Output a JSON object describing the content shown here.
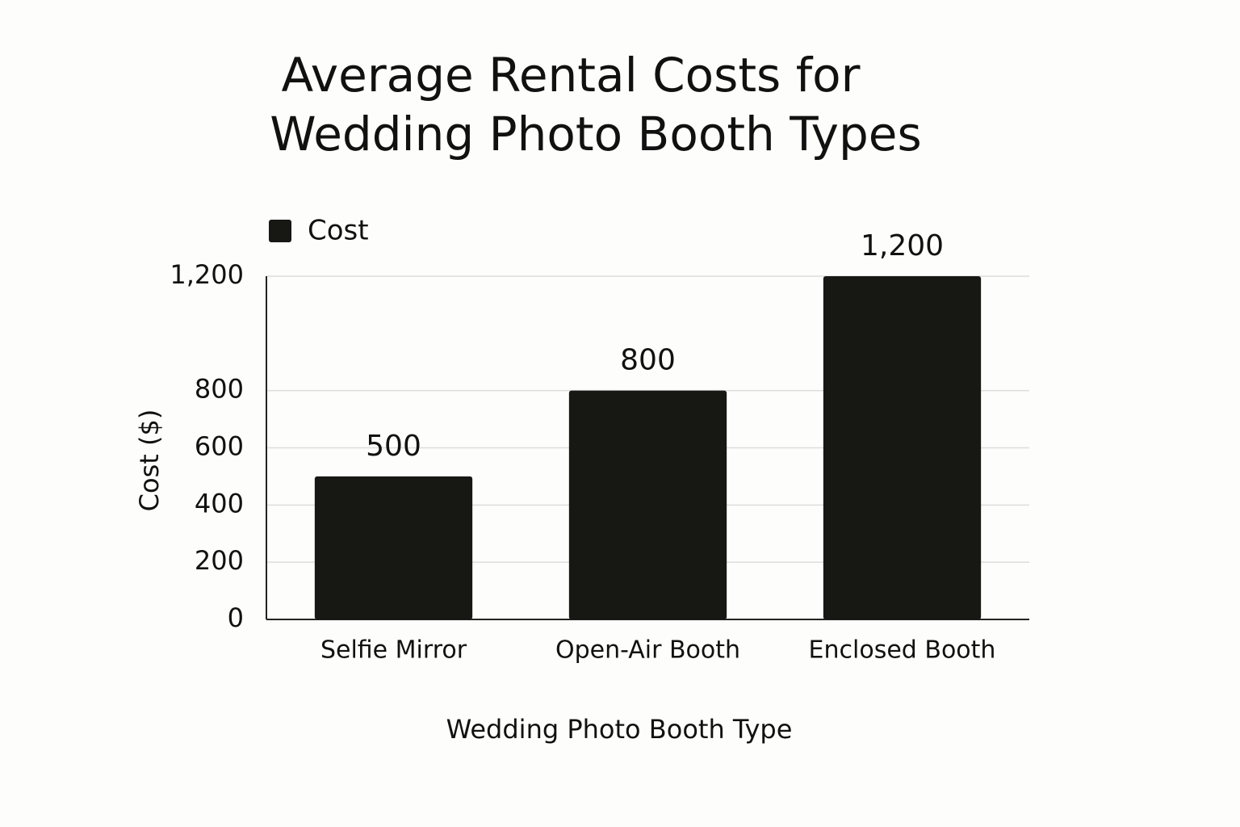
{
  "chart_data": {
    "type": "bar",
    "title": [
      "Average Rental Costs for",
      "Wedding Photo Booth Types"
    ],
    "xlabel": "Wedding Photo Booth Type",
    "ylabel": "Cost ($)",
    "categories": [
      "Selfie Mirror",
      "Open-Air Booth",
      "Enclosed Booth"
    ],
    "series": [
      {
        "name": "Cost",
        "color": "#171714",
        "values": [
          500,
          800,
          1200
        ],
        "value_labels": [
          "500",
          "800",
          "1,200"
        ]
      }
    ],
    "ylim": [
      0,
      1200
    ],
    "yticks": [
      0,
      200,
      400,
      600,
      800,
      {
        "value": 1200,
        "label": "1,200"
      }
    ],
    "grid": true,
    "legend": "top-left"
  }
}
